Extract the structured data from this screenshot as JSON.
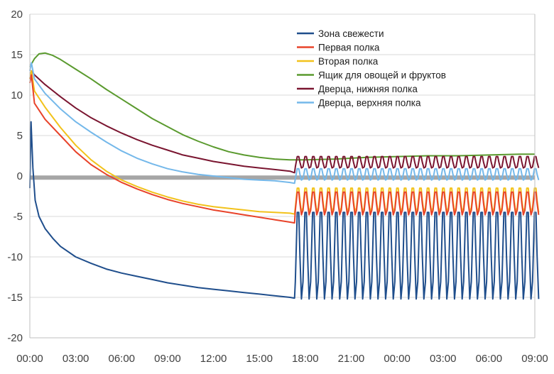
{
  "chart_data": {
    "type": "line",
    "title": "",
    "xlabel": "",
    "ylabel": "",
    "x_ticks": [
      "00:00",
      "03:00",
      "06:00",
      "09:00",
      "12:00",
      "15:00",
      "18:00",
      "21:00",
      "00:00",
      "03:00",
      "06:00",
      "09:00"
    ],
    "x_range_hours": [
      0,
      33
    ],
    "ylim": [
      -20,
      20
    ],
    "y_ticks": [
      -20,
      -15,
      -10,
      -5,
      0,
      5,
      10,
      15,
      20
    ],
    "grid": "horizontal",
    "legend_position": "top-right",
    "reference_line": {
      "y": -0.2,
      "color": "#a6a6a6"
    },
    "series": [
      {
        "name": "Зона свежести",
        "color": "#1f4e8c",
        "points": [
          [
            0,
            -1.5
          ],
          [
            0.08,
            6.7
          ],
          [
            0.2,
            1
          ],
          [
            0.35,
            -3
          ],
          [
            0.6,
            -5
          ],
          [
            1,
            -6.5
          ],
          [
            1.5,
            -7.7
          ],
          [
            2,
            -8.7
          ],
          [
            3,
            -10
          ],
          [
            4,
            -10.8
          ],
          [
            5,
            -11.5
          ],
          [
            6,
            -12
          ],
          [
            7,
            -12.4
          ],
          [
            8,
            -12.8
          ],
          [
            9,
            -13.2
          ],
          [
            10,
            -13.5
          ],
          [
            11,
            -13.8
          ],
          [
            12,
            -14
          ],
          [
            13,
            -14.2
          ],
          [
            14,
            -14.4
          ],
          [
            15,
            -14.6
          ],
          [
            16,
            -14.8
          ],
          [
            17,
            -15
          ],
          [
            17.3,
            -15.1
          ]
        ],
        "cycle": {
          "start": 17.35,
          "end": 33,
          "period": 0.5,
          "high": -4.5,
          "low": -15.2
        }
      },
      {
        "name": "Первая полка",
        "color": "#e8432a",
        "points": [
          [
            0,
            11.5
          ],
          [
            0.1,
            12.5
          ],
          [
            0.3,
            9
          ],
          [
            1,
            7
          ],
          [
            2,
            5
          ],
          [
            3,
            3
          ],
          [
            4,
            1.4
          ],
          [
            5,
            0.2
          ],
          [
            6,
            -0.8
          ],
          [
            7,
            -1.6
          ],
          [
            8,
            -2.3
          ],
          [
            9,
            -2.9
          ],
          [
            10,
            -3.4
          ],
          [
            11,
            -3.8
          ],
          [
            12,
            -4.2
          ],
          [
            13,
            -4.5
          ],
          [
            14,
            -4.8
          ],
          [
            15,
            -5.1
          ],
          [
            16,
            -5.4
          ],
          [
            17,
            -5.7
          ],
          [
            17.3,
            -5.8
          ]
        ],
        "cycle": {
          "start": 17.35,
          "end": 33,
          "period": 0.5,
          "high": -2,
          "low": -4.8
        }
      },
      {
        "name": "Вторая полка",
        "color": "#f2c21b",
        "points": [
          [
            0,
            12
          ],
          [
            0.1,
            13
          ],
          [
            0.3,
            10.5
          ],
          [
            1,
            8.5
          ],
          [
            2,
            6
          ],
          [
            3,
            3.8
          ],
          [
            4,
            2
          ],
          [
            5,
            0.6
          ],
          [
            6,
            -0.5
          ],
          [
            7,
            -1.3
          ],
          [
            8,
            -2
          ],
          [
            9,
            -2.6
          ],
          [
            10,
            -3.1
          ],
          [
            11,
            -3.5
          ],
          [
            12,
            -3.8
          ],
          [
            13,
            -4
          ],
          [
            14,
            -4.2
          ],
          [
            15,
            -4.4
          ],
          [
            16,
            -4.5
          ],
          [
            17,
            -4.6
          ],
          [
            17.3,
            -4.7
          ]
        ],
        "cycle": {
          "start": 17.35,
          "end": 33,
          "period": 0.5,
          "high": -1.5,
          "low": -4.5
        }
      },
      {
        "name": "Ящик для овощей и фруктов",
        "color": "#5a9a2e",
        "points": [
          [
            0,
            13.5
          ],
          [
            0.3,
            14.5
          ],
          [
            0.6,
            15.1
          ],
          [
            1,
            15.2
          ],
          [
            1.5,
            14.9
          ],
          [
            2,
            14.4
          ],
          [
            3,
            13.2
          ],
          [
            4,
            12
          ],
          [
            5,
            10.7
          ],
          [
            6,
            9.5
          ],
          [
            7,
            8.3
          ],
          [
            8,
            7.1
          ],
          [
            9,
            6.1
          ],
          [
            10,
            5.1
          ],
          [
            11,
            4.3
          ],
          [
            12,
            3.6
          ],
          [
            13,
            3
          ],
          [
            14,
            2.6
          ],
          [
            15,
            2.3
          ],
          [
            16,
            2.1
          ],
          [
            17,
            2
          ],
          [
            18,
            2
          ],
          [
            20,
            2.1
          ],
          [
            22,
            2.3
          ],
          [
            24,
            2.4
          ],
          [
            26,
            2.5
          ],
          [
            28,
            2.5
          ],
          [
            30,
            2.6
          ],
          [
            32,
            2.7
          ],
          [
            33,
            2.7
          ]
        ]
      },
      {
        "name": "Дверца, нижняя полка",
        "color": "#7a1530",
        "points": [
          [
            0,
            12
          ],
          [
            0.1,
            13
          ],
          [
            0.3,
            12.5
          ],
          [
            1,
            11.3
          ],
          [
            2,
            9.8
          ],
          [
            3,
            8.4
          ],
          [
            4,
            7.2
          ],
          [
            5,
            6.2
          ],
          [
            6,
            5.3
          ],
          [
            7,
            4.5
          ],
          [
            8,
            3.8
          ],
          [
            9,
            3.2
          ],
          [
            10,
            2.6
          ],
          [
            11,
            2.2
          ],
          [
            12,
            1.8
          ],
          [
            13,
            1.5
          ],
          [
            14,
            1.2
          ],
          [
            15,
            1
          ],
          [
            16,
            0.8
          ],
          [
            17,
            0.6
          ],
          [
            17.3,
            0.4
          ]
        ],
        "cycle": {
          "start": 17.35,
          "end": 33,
          "period": 0.5,
          "high": 2.4,
          "low": 1,
          "rise_to": 1.6
        }
      },
      {
        "name": "Дверца, верхняя полка",
        "color": "#74b8ea",
        "points": [
          [
            0,
            13
          ],
          [
            0.1,
            14
          ],
          [
            0.3,
            12
          ],
          [
            1,
            10.2
          ],
          [
            2,
            8.3
          ],
          [
            3,
            6.7
          ],
          [
            4,
            5.4
          ],
          [
            5,
            4.2
          ],
          [
            6,
            3.1
          ],
          [
            7,
            2.2
          ],
          [
            8,
            1.5
          ],
          [
            9,
            0.9
          ],
          [
            10,
            0.5
          ],
          [
            11,
            0.2
          ],
          [
            12,
            0
          ],
          [
            13,
            -0.2
          ],
          [
            14,
            -0.4
          ],
          [
            15,
            -0.5
          ],
          [
            16,
            -0.6
          ],
          [
            17,
            -0.8
          ],
          [
            17.3,
            -0.9
          ]
        ],
        "cycle": {
          "start": 17.35,
          "end": 33,
          "period": 0.5,
          "high": 0.9,
          "low": -0.5,
          "rise_to": 0.3
        }
      }
    ]
  }
}
